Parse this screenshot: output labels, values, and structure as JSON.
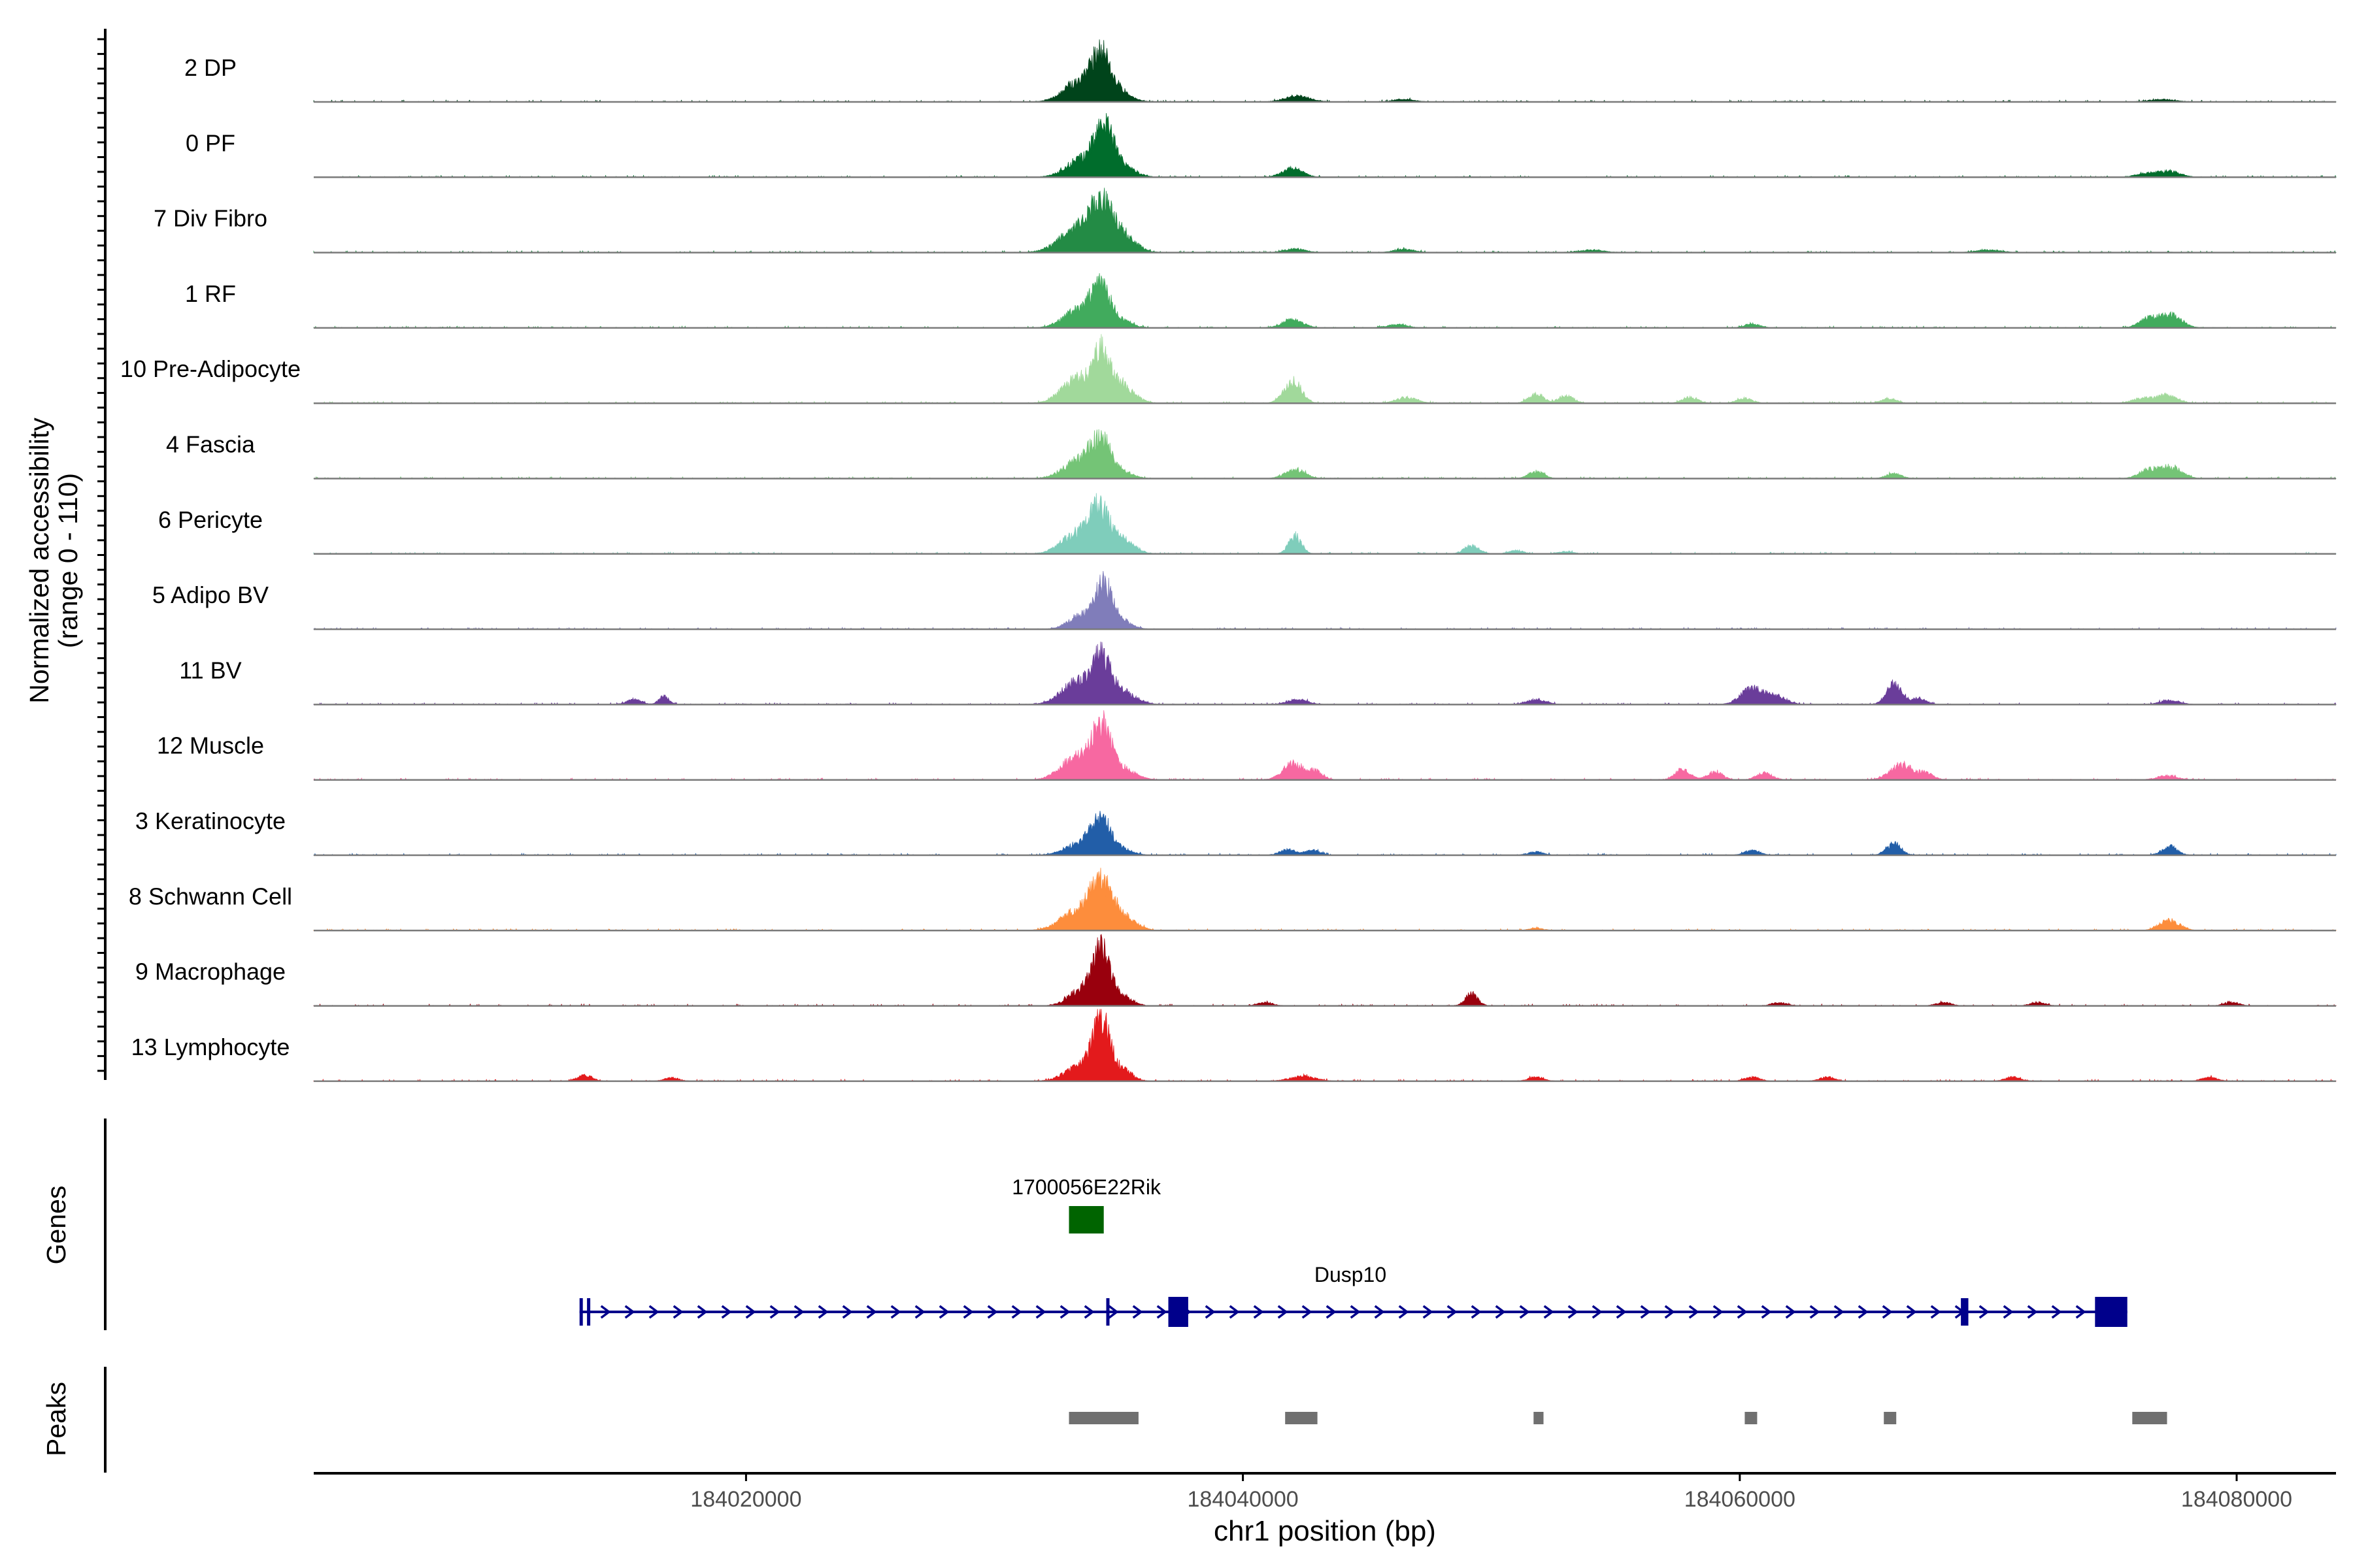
{
  "chart_data": {
    "type": "area",
    "ylabel_line1": "Normalized accessibility",
    "ylabel_line2": "(range 0 - 110)",
    "ylim": [
      0,
      110
    ],
    "xlabel": "chr1 position (bp)",
    "xlim": [
      184002600,
      184084000
    ],
    "xticks": [
      184020000,
      184040000,
      184060000,
      184080000
    ],
    "xtick_labels": [
      "184020000",
      "184040000",
      "184060000",
      "184080000"
    ],
    "series": [
      {
        "name": "2 DP",
        "color": "#00441b",
        "peaks": [
          [
            184033400,
            48,
            600
          ],
          [
            184034300,
            104,
            400
          ],
          [
            184035000,
            20,
            500
          ],
          [
            184042200,
            14,
            500
          ],
          [
            184046500,
            6,
            400
          ],
          [
            184077000,
            6,
            500
          ]
        ]
      },
      {
        "name": "0 PF",
        "color": "#006d2c",
        "peaks": [
          [
            184033500,
            45,
            600
          ],
          [
            184034400,
            106,
            380
          ],
          [
            184035100,
            30,
            500
          ],
          [
            184042000,
            22,
            400
          ],
          [
            184076500,
            10,
            500
          ],
          [
            184077400,
            12,
            400
          ]
        ]
      },
      {
        "name": "7 Div Fibro",
        "color": "#238b45",
        "peaks": [
          [
            184033300,
            55,
            700
          ],
          [
            184034300,
            108,
            450
          ],
          [
            184035200,
            40,
            500
          ],
          [
            184042100,
            9,
            400
          ],
          [
            184046500,
            8,
            400
          ],
          [
            184054000,
            6,
            500
          ],
          [
            184070000,
            6,
            500
          ]
        ]
      },
      {
        "name": "1 RF",
        "color": "#41ab5d",
        "peaks": [
          [
            184033400,
            45,
            600
          ],
          [
            184034300,
            100,
            380
          ],
          [
            184035200,
            14,
            400
          ],
          [
            184042000,
            22,
            400
          ],
          [
            184046200,
            8,
            400
          ],
          [
            184060500,
            10,
            300
          ],
          [
            184076500,
            25,
            400
          ],
          [
            184077400,
            30,
            400
          ]
        ]
      },
      {
        "name": "10 Pre-Adipocyte",
        "color": "#a1d99b",
        "peaks": [
          [
            184033300,
            60,
            600
          ],
          [
            184034300,
            110,
            350
          ],
          [
            184035100,
            45,
            500
          ],
          [
            184042000,
            55,
            350
          ],
          [
            184046600,
            15,
            400
          ],
          [
            184051800,
            22,
            300
          ],
          [
            184053000,
            18,
            300
          ],
          [
            184058000,
            15,
            300
          ],
          [
            184060200,
            12,
            300
          ],
          [
            184066000,
            12,
            300
          ],
          [
            184076200,
            12,
            400
          ],
          [
            184077200,
            20,
            400
          ]
        ]
      },
      {
        "name": "4 Fascia",
        "color": "#74c476",
        "peaks": [
          [
            184033400,
            45,
            600
          ],
          [
            184034300,
            90,
            400
          ],
          [
            184035200,
            15,
            400
          ],
          [
            184042100,
            22,
            400
          ],
          [
            184051800,
            18,
            300
          ],
          [
            184066200,
            12,
            300
          ],
          [
            184076500,
            22,
            400
          ],
          [
            184077400,
            28,
            400
          ]
        ]
      },
      {
        "name": "6 Pericyte",
        "color": "#7fcdbb",
        "peaks": [
          [
            184033300,
            50,
            600
          ],
          [
            184034200,
            100,
            400
          ],
          [
            184035100,
            35,
            500
          ],
          [
            184042100,
            45,
            250
          ],
          [
            184049200,
            20,
            300
          ],
          [
            184051000,
            8,
            300
          ],
          [
            184053000,
            6,
            300
          ]
        ]
      },
      {
        "name": "5 Adipo BV",
        "color": "#807dba",
        "peaks": [
          [
            184033500,
            35,
            500
          ],
          [
            184034400,
            108,
            330
          ],
          [
            184035100,
            20,
            400
          ]
        ]
      },
      {
        "name": "11 BV",
        "color": "#6a3d9a",
        "peaks": [
          [
            184015500,
            12,
            300
          ],
          [
            184016700,
            20,
            200
          ],
          [
            184033300,
            55,
            600
          ],
          [
            184034300,
            105,
            380
          ],
          [
            184035200,
            30,
            500
          ],
          [
            184042200,
            12,
            400
          ],
          [
            184051800,
            12,
            400
          ],
          [
            184060500,
            40,
            450
          ],
          [
            184061500,
            20,
            400
          ],
          [
            184066200,
            50,
            300
          ],
          [
            184067200,
            15,
            300
          ],
          [
            184077300,
            10,
            400
          ]
        ]
      },
      {
        "name": "12 Muscle",
        "color": "#f768a1",
        "peaks": [
          [
            184033300,
            55,
            600
          ],
          [
            184034300,
            125,
            380
          ],
          [
            184035200,
            25,
            500
          ],
          [
            184042000,
            40,
            400
          ],
          [
            184042900,
            20,
            300
          ],
          [
            184057700,
            25,
            300
          ],
          [
            184059000,
            20,
            300
          ],
          [
            184061000,
            18,
            300
          ],
          [
            184066500,
            38,
            450
          ],
          [
            184067500,
            15,
            300
          ],
          [
            184077200,
            10,
            400
          ]
        ]
      },
      {
        "name": "3 Keratinocyte",
        "color": "#225ea8",
        "peaks": [
          [
            184033500,
            30,
            600
          ],
          [
            184034300,
            78,
            400
          ],
          [
            184035200,
            12,
            400
          ],
          [
            184041800,
            14,
            300
          ],
          [
            184042800,
            12,
            300
          ],
          [
            184051800,
            8,
            300
          ],
          [
            184060500,
            12,
            300
          ],
          [
            184066200,
            28,
            300
          ],
          [
            184077300,
            22,
            300
          ]
        ]
      },
      {
        "name": "8 Schwann Cell",
        "color": "#fd8d3c",
        "peaks": [
          [
            184033400,
            45,
            700
          ],
          [
            184034300,
            100,
            450
          ],
          [
            184035200,
            30,
            500
          ],
          [
            184051800,
            5,
            300
          ],
          [
            184077300,
            25,
            400
          ]
        ]
      },
      {
        "name": "9 Macrophage",
        "color": "#99000d",
        "peaks": [
          [
            184033500,
            40,
            500
          ],
          [
            184034300,
            140,
            330
          ],
          [
            184035100,
            25,
            400
          ],
          [
            184040900,
            8,
            300
          ],
          [
            184049200,
            30,
            250
          ],
          [
            184061600,
            8,
            300
          ],
          [
            184068200,
            8,
            300
          ],
          [
            184072000,
            8,
            300
          ],
          [
            184079800,
            8,
            300
          ]
        ]
      },
      {
        "name": "13 Lymphocyte",
        "color": "#e31a1c",
        "peaks": [
          [
            184013500,
            14,
            300
          ],
          [
            184017000,
            8,
            300
          ],
          [
            184033500,
            40,
            600
          ],
          [
            184034300,
            140,
            330
          ],
          [
            184035100,
            30,
            400
          ],
          [
            184042400,
            12,
            500
          ],
          [
            184051800,
            10,
            300
          ],
          [
            184060500,
            10,
            300
          ],
          [
            184063500,
            10,
            300
          ],
          [
            184071000,
            10,
            300
          ],
          [
            184078900,
            10,
            300
          ]
        ]
      }
    ],
    "genes_panel": {
      "label": "Genes",
      "genes": [
        {
          "name": "1700056E22Rik",
          "color": "#006400",
          "start": 184033000,
          "end": 184034400,
          "exons": [
            [
              184033000,
              184034400
            ]
          ]
        },
        {
          "name": "Dusp10",
          "color": "#00008b",
          "start": 184013300,
          "end": 184075600,
          "strand": "+",
          "exons": [
            [
              184013300,
              184013400
            ],
            [
              184013600,
              184013700
            ],
            [
              184034500,
              184034620
            ],
            [
              184037000,
              184037800
            ],
            [
              184068900,
              184069200
            ],
            [
              184074300,
              184075600
            ]
          ]
        }
      ]
    },
    "peaks_panel": {
      "label": "Peaks",
      "color": "#707070",
      "regions": [
        [
          184033000,
          184035800
        ],
        [
          184041700,
          184043000
        ],
        [
          184051700,
          184052100
        ],
        [
          184060200,
          184060700
        ],
        [
          184065800,
          184066300
        ],
        [
          184075800,
          184077200
        ]
      ]
    }
  }
}
